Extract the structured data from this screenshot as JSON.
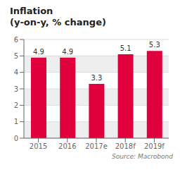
{
  "chart_data": {
    "type": "bar",
    "title": "Inflation",
    "subtitle": "(y-on-y, % change)",
    "categories": [
      "2015",
      "2016",
      "2017e",
      "2018f",
      "2019f"
    ],
    "values": [
      4.9,
      4.9,
      3.3,
      5.1,
      5.3
    ],
    "color": "#e0003c",
    "ylim": [
      0,
      6
    ],
    "yticks": [
      0,
      1,
      2,
      3,
      4,
      5,
      6
    ],
    "grid": true,
    "data_labels": true,
    "annotations": [
      "Source: Macrobond"
    ]
  }
}
